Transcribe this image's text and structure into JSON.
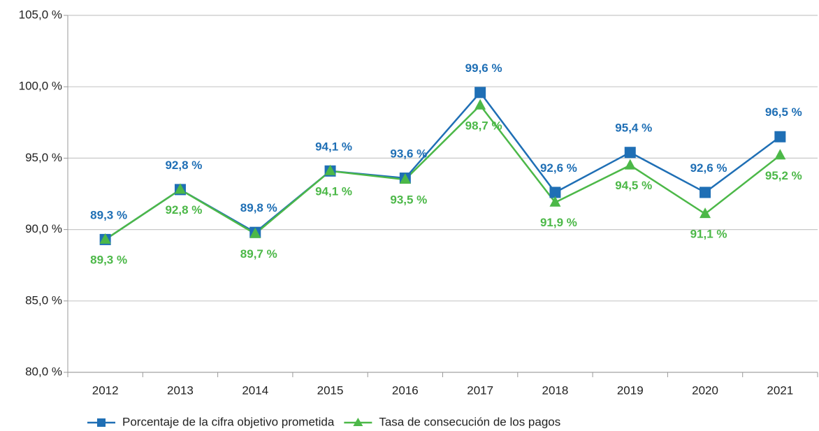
{
  "chart_data": {
    "type": "line",
    "categories": [
      "2012",
      "2013",
      "2014",
      "2015",
      "2016",
      "2017",
      "2018",
      "2019",
      "2020",
      "2021"
    ],
    "series": [
      {
        "name": "Porcentaje de la cifra objetivo prometida",
        "color": "#1f6fb5",
        "marker": "square",
        "values": [
          89.3,
          92.8,
          89.8,
          94.1,
          93.6,
          99.6,
          92.6,
          95.4,
          92.6,
          96.5
        ],
        "value_labels": [
          "89,3 %",
          "92,8 %",
          "89,8 %",
          "94,1 %",
          "93,6 %",
          "99,6 %",
          "92,6 %",
          "95,4 %",
          "92,6 %",
          "96,5 %"
        ]
      },
      {
        "name": "Tasa de consecución de los pagos",
        "color": "#4cb848",
        "marker": "triangle",
        "values": [
          89.3,
          92.8,
          89.7,
          94.1,
          93.5,
          98.7,
          91.9,
          94.5,
          91.1,
          95.2
        ],
        "value_labels": [
          "89,3 %",
          "92,8 %",
          "89,7 %",
          "94,1 %",
          "93,5 %",
          "98,7 %",
          "91,9 %",
          "94,5 %",
          "91,1 %",
          "95,2 %"
        ]
      }
    ],
    "ylim": [
      80,
      105
    ],
    "yticks": [
      {
        "value": 80,
        "label": "80,0 %"
      },
      {
        "value": 85,
        "label": "85,0 %"
      },
      {
        "value": 90,
        "label": "90,0 %"
      },
      {
        "value": 95,
        "label": "95,0 %"
      },
      {
        "value": 100,
        "label": "100,0 %"
      },
      {
        "value": 105,
        "label": "105,0 %"
      }
    ],
    "grid": true,
    "legend": "bottom"
  }
}
